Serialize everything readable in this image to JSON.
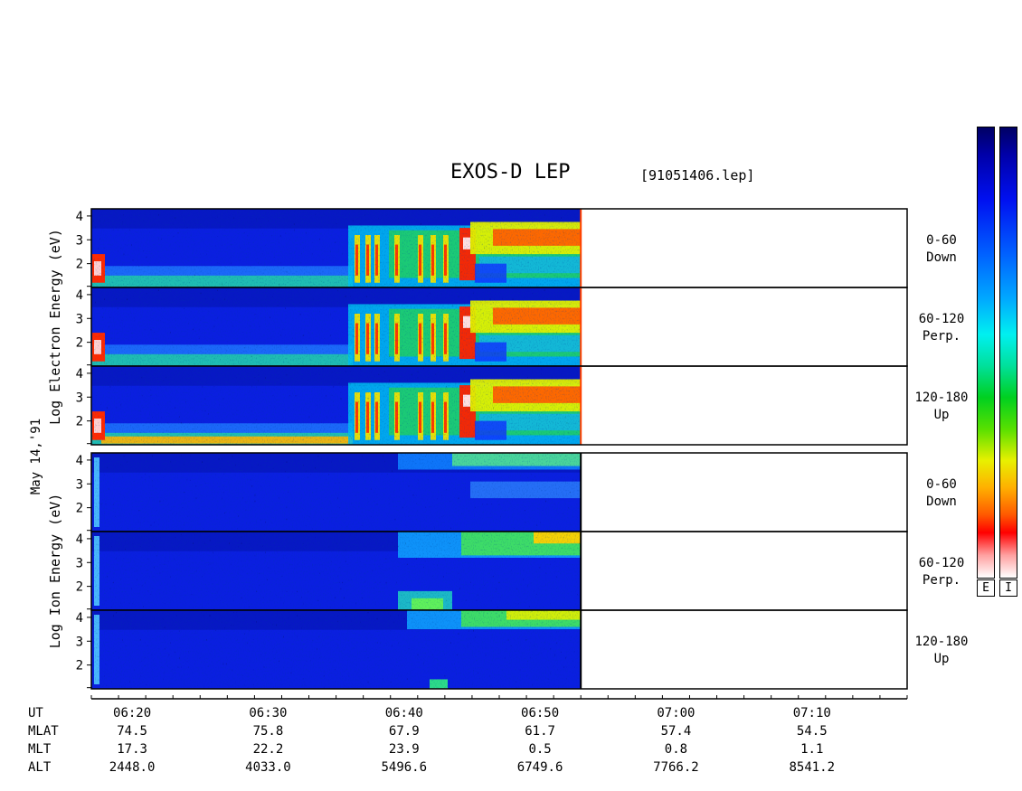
{
  "chart_data": {
    "type": "heatmap",
    "title": "EXOS-D LEP",
    "file_label": "[91051406.lep]",
    "date_label": "May 14,'91",
    "x_axis": {
      "start": "06:17",
      "end": "07:17",
      "ticks": [
        "06:20",
        "06:30",
        "06:40",
        "06:50",
        "07:00",
        "07:10"
      ],
      "data_end": "06:53"
    },
    "y_ticks": [
      "4",
      "3",
      "2"
    ],
    "y_range": [
      1,
      4.3
    ],
    "groups": [
      {
        "ylabel": [
          "Log",
          "Electron",
          "Energy",
          "(eV)"
        ],
        "panels": [
          {
            "pitch_angle": [
              "0-60",
              "Down"
            ]
          },
          {
            "pitch_angle": [
              "60-120",
              "Perp."
            ]
          },
          {
            "pitch_angle": [
              "120-180",
              "Up"
            ]
          }
        ]
      },
      {
        "ylabel": [
          "Log",
          "Ion",
          "Energy",
          "(eV)"
        ],
        "panels": [
          {
            "pitch_angle": [
              "0-60",
              "Down"
            ]
          },
          {
            "pitch_angle": [
              "60-120",
              "Perp."
            ]
          },
          {
            "pitch_angle": [
              "120-180",
              "Up"
            ]
          }
        ]
      }
    ],
    "colorbars": [
      "E",
      "I"
    ],
    "ephemeris": {
      "rows": [
        {
          "label": "UT",
          "values": []
        },
        {
          "label": "MLAT",
          "values": [
            "74.5",
            "75.8",
            "67.9",
            "61.7",
            "57.4",
            "54.5"
          ]
        },
        {
          "label": "MLT",
          "values": [
            "17.3",
            "22.2",
            "23.9",
            "0.5",
            "0.8",
            "1.1"
          ]
        },
        {
          "label": "ALT",
          "values": [
            "2448.0",
            "4033.0",
            "5496.6",
            "6749.6",
            "7766.2",
            "8541.2"
          ]
        }
      ]
    }
  }
}
